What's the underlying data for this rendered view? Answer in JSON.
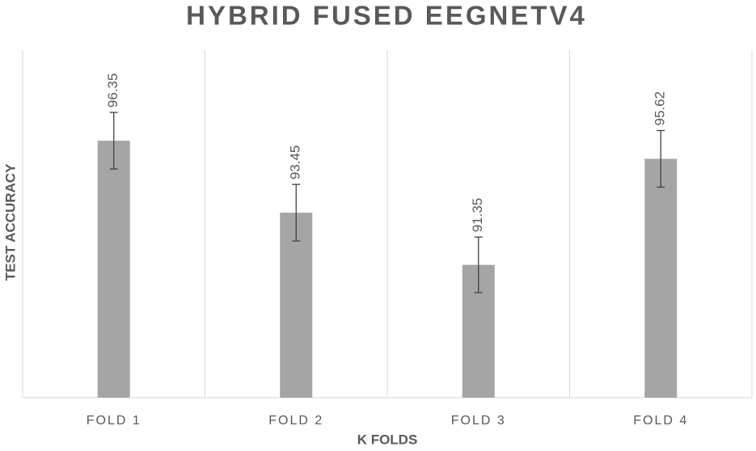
{
  "chart_data": {
    "type": "bar",
    "title": "HYBRID FUSED EEGNETV4",
    "x_label": "K FOLDS",
    "y_label": "TEST ACCURACY",
    "categories": [
      "FOLD 1",
      "FOLD 2",
      "FOLD 3",
      "FOLD 4"
    ],
    "values": [
      96.35,
      93.45,
      91.35,
      95.62
    ],
    "errors": [
      1.14,
      1.14,
      1.12,
      1.14
    ],
    "color": "#a5a5a5",
    "error_color": "#404040",
    "ylim": [
      86,
      100
    ]
  }
}
